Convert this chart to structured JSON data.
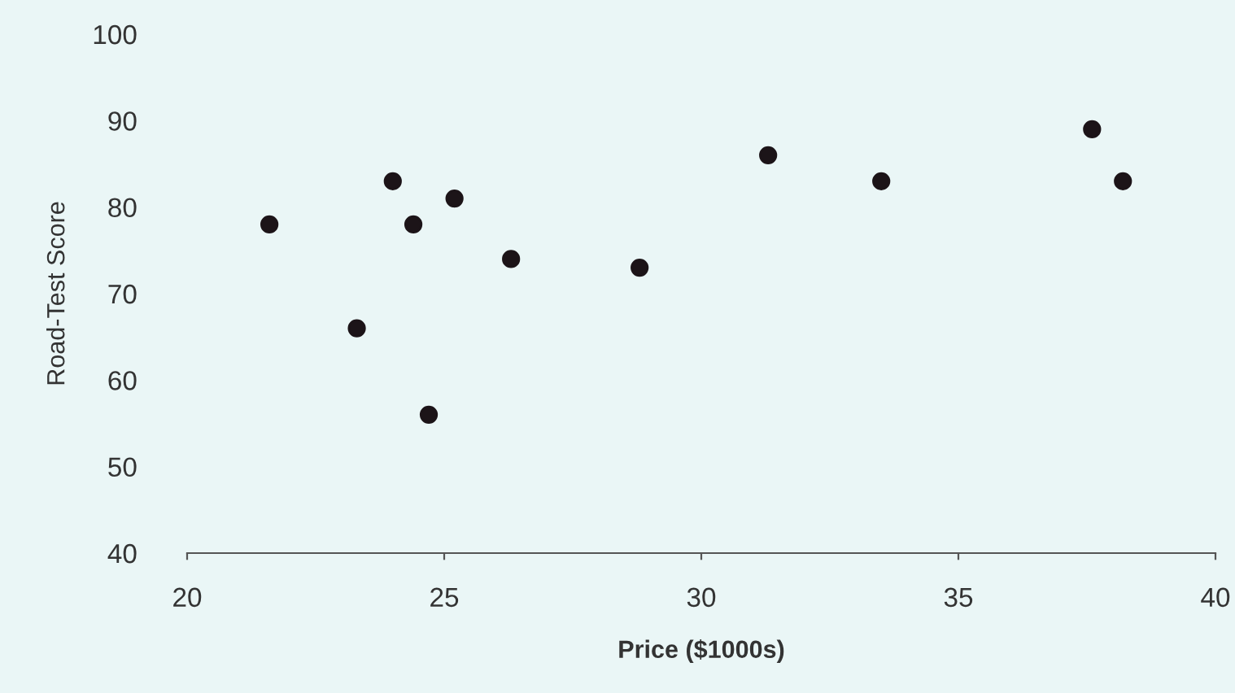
{
  "chart_data": {
    "type": "scatter",
    "xlabel": "Price ($1000s)",
    "ylabel": "Road-Test Score",
    "x": [
      21.6,
      23.3,
      24.0,
      24.4,
      24.7,
      25.2,
      26.3,
      28.8,
      31.3,
      33.5,
      37.6,
      38.2
    ],
    "series": [
      {
        "color": "#1c1418",
        "values": [
          78,
          66,
          83,
          78,
          56,
          81,
          74,
          73,
          86,
          83,
          89,
          83
        ]
      }
    ],
    "xlim": [
      20,
      40
    ],
    "ylim": [
      40,
      100
    ],
    "xticks": [
      20,
      25,
      30,
      35,
      40
    ],
    "yticks": [
      40,
      50,
      60,
      70,
      80,
      90,
      100
    ],
    "marker": "circle",
    "grid": false,
    "legend": false
  }
}
